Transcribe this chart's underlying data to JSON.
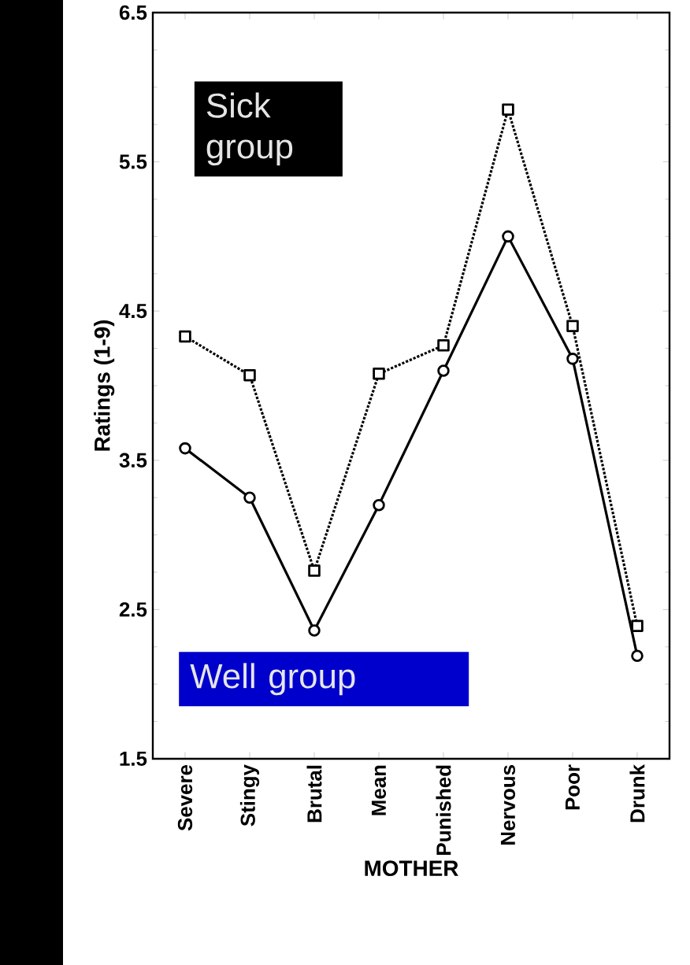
{
  "chart_data": {
    "type": "line",
    "xlabel": "MOTHER",
    "ylabel": "Ratings (1-9)",
    "categories": [
      "Severe",
      "Stingy",
      "Brutal",
      "Mean",
      "Punished",
      "Nervous",
      "Poor",
      "Drunk"
    ],
    "series": [
      {
        "name": "Sick group",
        "color": "#000000",
        "marker": "square",
        "line_style": "dotted",
        "values": [
          4.33,
          4.07,
          2.76,
          4.08,
          4.27,
          5.85,
          4.4,
          2.39
        ]
      },
      {
        "name": "Well group",
        "color": "#000000",
        "marker": "circle",
        "line_style": "solid",
        "values": [
          3.58,
          3.25,
          2.36,
          3.2,
          4.1,
          5.0,
          4.18,
          2.19
        ]
      }
    ],
    "ylim": [
      1.5,
      6.5
    ],
    "yticks": [
      1.5,
      2.5,
      3.5,
      4.5,
      5.5,
      6.5
    ],
    "grid": false,
    "legend": "left"
  }
}
